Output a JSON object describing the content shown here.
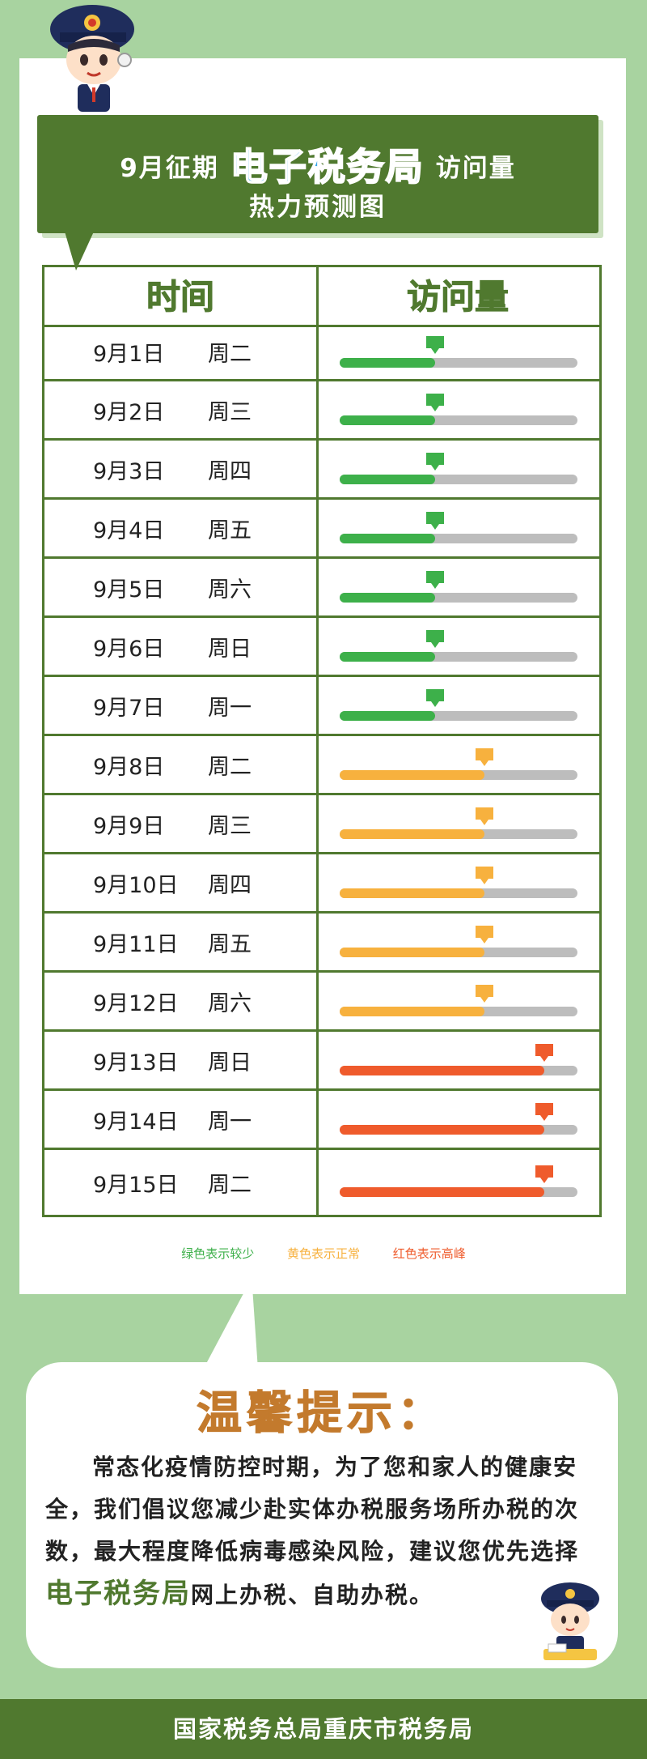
{
  "header": {
    "title_part1": "9月征期",
    "title_highlight": "电子税务局",
    "title_part2": "访问量",
    "title_line2": "热力预测图"
  },
  "table": {
    "col_date": "时间",
    "col_visit": "访问量",
    "rows": [
      {
        "date": "9月1日",
        "weekday": "周二",
        "level": "low",
        "fill": 0.4
      },
      {
        "date": "9月2日",
        "weekday": "周三",
        "level": "low",
        "fill": 0.4
      },
      {
        "date": "9月3日",
        "weekday": "周四",
        "level": "low",
        "fill": 0.4
      },
      {
        "date": "9月4日",
        "weekday": "周五",
        "level": "low",
        "fill": 0.4
      },
      {
        "date": "9月5日",
        "weekday": "周六",
        "level": "low",
        "fill": 0.4
      },
      {
        "date": "9月6日",
        "weekday": "周日",
        "level": "low",
        "fill": 0.4
      },
      {
        "date": "9月7日",
        "weekday": "周一",
        "level": "low",
        "fill": 0.4
      },
      {
        "date": "9月8日",
        "weekday": "周二",
        "level": "normal",
        "fill": 0.61
      },
      {
        "date": "9月9日",
        "weekday": "周三",
        "level": "normal",
        "fill": 0.61
      },
      {
        "date": "9月10日",
        "weekday": "周四",
        "level": "normal",
        "fill": 0.61
      },
      {
        "date": "9月11日",
        "weekday": "周五",
        "level": "normal",
        "fill": 0.61
      },
      {
        "date": "9月12日",
        "weekday": "周六",
        "level": "normal",
        "fill": 0.61
      },
      {
        "date": "9月13日",
        "weekday": "周日",
        "level": "high",
        "fill": 0.86
      },
      {
        "date": "9月14日",
        "weekday": "周一",
        "level": "high",
        "fill": 0.86
      },
      {
        "date": "9月15日",
        "weekday": "周二",
        "level": "high",
        "fill": 0.86
      }
    ]
  },
  "colors": {
    "low": "#3db04a",
    "normal": "#f7b13e",
    "high": "#ef5b2c",
    "track": "#bdbdbd",
    "brand": "#50792f"
  },
  "legend": {
    "low": "绿色表示较少",
    "normal": "黄色表示正常",
    "high": "红色表示高峰"
  },
  "tip": {
    "title": "温馨提示：",
    "body_part1": "常态化疫情防控时期，为了您和家人的健康安全，我们倡议您减少赴实体办税服务场所办税的次数，最大程度降低病毒感染风险，建议您优先选择",
    "body_highlight": "电子税务局",
    "body_part2": "网上办税、自助办税。"
  },
  "footer": {
    "text": "国家税务总局重庆市税务局"
  }
}
